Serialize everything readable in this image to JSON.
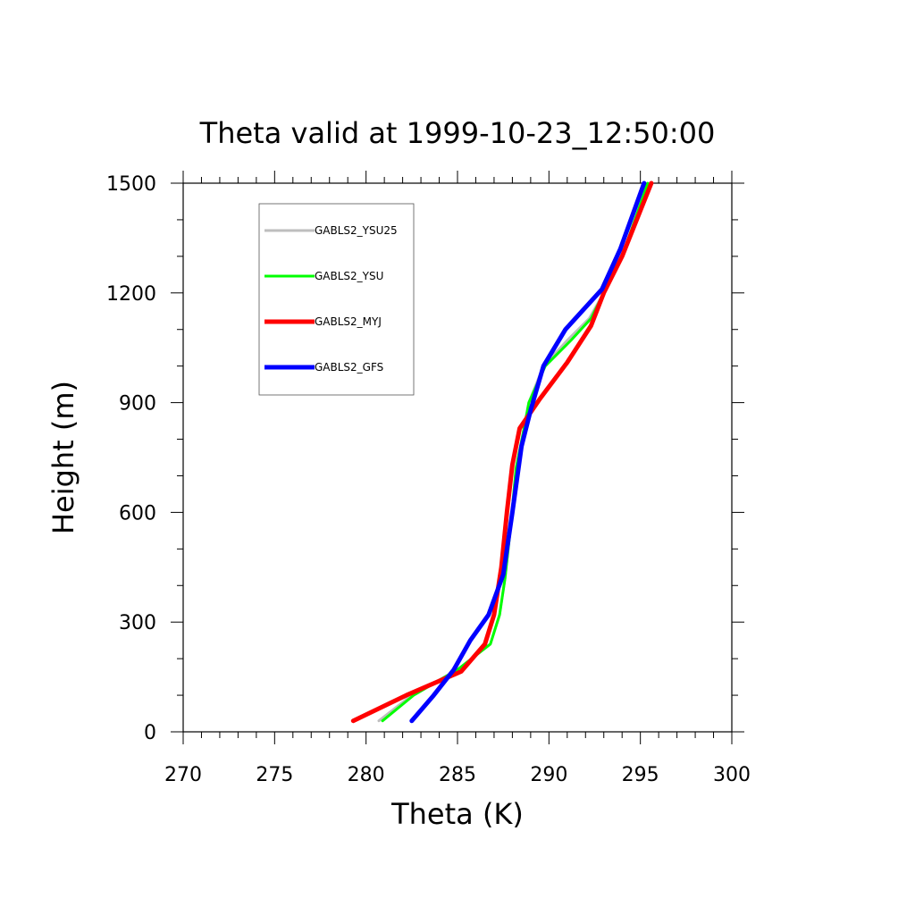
{
  "chart_data": {
    "type": "line",
    "title": "Theta valid at 1999-10-23_12:50:00",
    "xlabel": "Theta (K)",
    "ylabel": "Height (m)",
    "xlim": [
      270,
      300
    ],
    "ylim": [
      0,
      1500
    ],
    "x_ticks": [
      270,
      275,
      280,
      285,
      290,
      295,
      300
    ],
    "y_ticks": [
      0,
      300,
      600,
      900,
      1200,
      1500
    ],
    "grid": false,
    "legend_position": "top-left",
    "series": [
      {
        "name": "GABLS2_YSU25",
        "color": "#bebebe",
        "width": 3,
        "points": [
          [
            280.7,
            30
          ],
          [
            282.5,
            100
          ],
          [
            285.0,
            170
          ],
          [
            286.8,
            240
          ],
          [
            287.3,
            320
          ],
          [
            287.6,
            420
          ],
          [
            287.9,
            560
          ],
          [
            288.2,
            720
          ],
          [
            288.6,
            820
          ],
          [
            288.9,
            900
          ],
          [
            289.7,
            1000
          ],
          [
            291.0,
            1070
          ],
          [
            292.2,
            1130
          ],
          [
            293.0,
            1200
          ],
          [
            294.0,
            1300
          ],
          [
            295.5,
            1500
          ]
        ]
      },
      {
        "name": "GABLS2_YSU",
        "color": "#00ff00",
        "width": 3,
        "points": [
          [
            280.9,
            30
          ],
          [
            282.6,
            100
          ],
          [
            285.0,
            170
          ],
          [
            286.8,
            240
          ],
          [
            287.3,
            320
          ],
          [
            287.6,
            420
          ],
          [
            287.9,
            560
          ],
          [
            288.2,
            720
          ],
          [
            288.6,
            820
          ],
          [
            288.9,
            900
          ],
          [
            289.8,
            1000
          ],
          [
            291.2,
            1070
          ],
          [
            292.3,
            1130
          ],
          [
            293.0,
            1200
          ],
          [
            294.0,
            1300
          ],
          [
            295.4,
            1500
          ]
        ]
      },
      {
        "name": "GABLS2_MYJ",
        "color": "#ff0000",
        "width": 5,
        "points": [
          [
            279.3,
            30
          ],
          [
            282.2,
            100
          ],
          [
            285.2,
            165
          ],
          [
            286.5,
            240
          ],
          [
            287.0,
            320
          ],
          [
            287.4,
            450
          ],
          [
            287.7,
            600
          ],
          [
            288.0,
            730
          ],
          [
            288.4,
            830
          ],
          [
            289.5,
            910
          ],
          [
            291.0,
            1010
          ],
          [
            292.3,
            1110
          ],
          [
            293.0,
            1200
          ],
          [
            294.0,
            1300
          ],
          [
            295.6,
            1500
          ]
        ]
      },
      {
        "name": "GABLS2_GFS",
        "color": "#0000ff",
        "width": 5,
        "points": [
          [
            282.5,
            30
          ],
          [
            283.7,
            100
          ],
          [
            284.8,
            170
          ],
          [
            285.7,
            250
          ],
          [
            286.7,
            320
          ],
          [
            287.5,
            430
          ],
          [
            288.0,
            600
          ],
          [
            288.5,
            780
          ],
          [
            289.0,
            880
          ],
          [
            289.7,
            1000
          ],
          [
            290.9,
            1100
          ],
          [
            292.9,
            1210
          ],
          [
            293.9,
            1320
          ],
          [
            295.2,
            1500
          ]
        ]
      }
    ]
  }
}
